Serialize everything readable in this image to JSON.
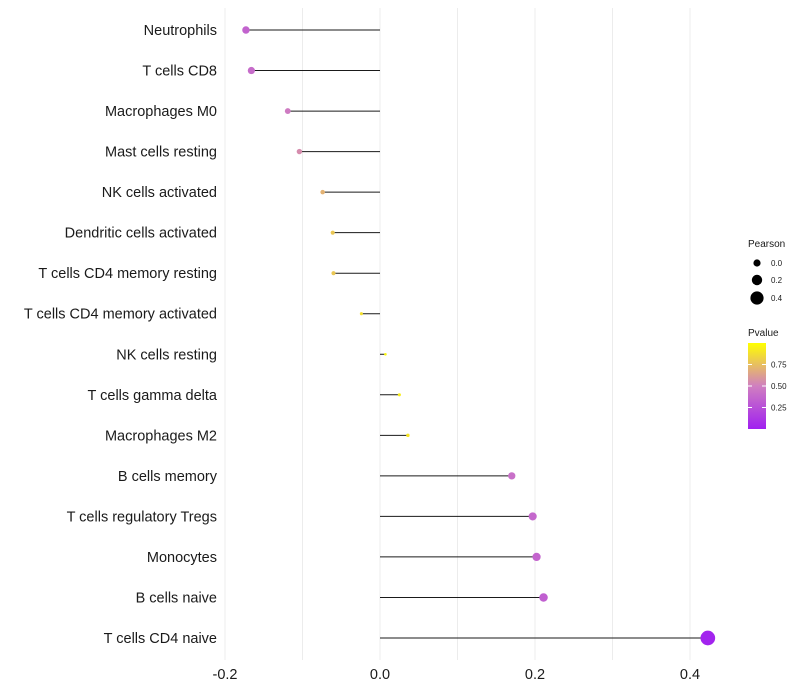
{
  "chart_data": {
    "type": "lollipop",
    "title": "",
    "xlabel": "",
    "ylabel": "",
    "xlim": [
      -0.2,
      0.42
    ],
    "xticks": [
      -0.2,
      0.0,
      0.2,
      0.4
    ],
    "xtick_labels": [
      "-0.2",
      "0.0",
      "0.2",
      "0.4"
    ],
    "grid": true,
    "categories": [
      "Neutrophils",
      "T cells CD8",
      "Macrophages M0",
      "Mast cells resting",
      "NK cells activated",
      "Dendritic cells activated",
      "T cells CD4 memory resting",
      "T cells CD4 memory activated",
      "NK cells resting",
      "T cells gamma delta",
      "Macrophages M2",
      "B cells memory",
      "T cells regulatory  Tregs ",
      "Monocytes",
      "B cells naive",
      "T cells CD4 naive"
    ],
    "pearson": [
      -0.173,
      -0.166,
      -0.119,
      -0.104,
      -0.074,
      -0.061,
      -0.06,
      -0.024,
      0.007,
      0.025,
      0.036,
      0.17,
      0.197,
      0.202,
      0.211,
      0.423
    ],
    "pvalue": [
      0.35,
      0.4,
      0.48,
      0.55,
      0.7,
      0.78,
      0.78,
      0.88,
      0.97,
      0.93,
      0.9,
      0.42,
      0.38,
      0.36,
      0.33,
      0.02
    ],
    "legend_size": {
      "title": "Pearson",
      "values": [
        0.0,
        0.2,
        0.4
      ],
      "labels": [
        "0.0",
        "0.2",
        "0.4"
      ]
    },
    "legend_color": {
      "title": "Pvalue",
      "range": [
        0.0,
        1.0
      ],
      "ticks": [
        0.25,
        0.5,
        0.75
      ],
      "tick_labels": [
        "0.25",
        "0.50",
        "0.75"
      ],
      "low_color": "#a020f0",
      "mid_color": "#d07fc0",
      "high_color": "#ffff00"
    },
    "legend_position": "right"
  }
}
